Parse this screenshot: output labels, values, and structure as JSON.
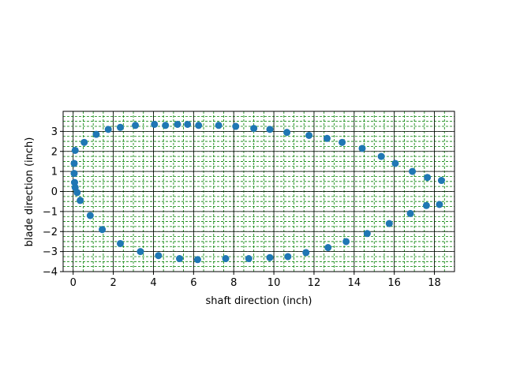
{
  "chart_data": {
    "type": "scatter",
    "title": "",
    "xlabel": "shaft direction (inch)",
    "ylabel": "blade direction (inch)",
    "xlim": [
      -0.5,
      19
    ],
    "ylim": [
      -4,
      4
    ],
    "xticks": [
      0,
      2,
      4,
      6,
      8,
      10,
      12,
      14,
      16,
      18
    ],
    "yticks": [
      -4,
      -3,
      -2,
      -1,
      0,
      1,
      2,
      3
    ],
    "x_minor_step": 0.5,
    "y_minor_step": 0.25,
    "grid": {
      "major": true,
      "major_color": "#000000",
      "minor": true,
      "minor_color": "#008000",
      "minor_style": "dashed"
    },
    "marker_color": "#1f77b4",
    "series": [
      {
        "points": [
          [
            0.05,
            1.4
          ],
          [
            0.1,
            2.05
          ],
          [
            0.55,
            2.45
          ],
          [
            1.15,
            2.85
          ],
          [
            1.75,
            3.1
          ],
          [
            2.35,
            3.2
          ],
          [
            3.1,
            3.3
          ],
          [
            4.05,
            3.35
          ],
          [
            4.6,
            3.3
          ],
          [
            5.2,
            3.35
          ],
          [
            5.7,
            3.35
          ],
          [
            6.25,
            3.3
          ],
          [
            7.25,
            3.3
          ],
          [
            8.1,
            3.25
          ],
          [
            9.0,
            3.15
          ],
          [
            9.8,
            3.1
          ],
          [
            10.65,
            2.95
          ],
          [
            11.75,
            2.8
          ],
          [
            12.65,
            2.65
          ],
          [
            13.4,
            2.45
          ],
          [
            14.4,
            2.15
          ],
          [
            15.35,
            1.75
          ],
          [
            16.05,
            1.4
          ],
          [
            16.9,
            1.0
          ],
          [
            17.65,
            0.7
          ],
          [
            18.35,
            0.55
          ],
          [
            0.05,
            0.9
          ],
          [
            0.07,
            0.45
          ],
          [
            0.1,
            0.2
          ],
          [
            0.2,
            -0.05
          ],
          [
            0.35,
            -0.45
          ],
          [
            0.85,
            -1.2
          ],
          [
            1.45,
            -1.9
          ],
          [
            2.35,
            -2.6
          ],
          [
            3.35,
            -3.0
          ],
          [
            4.25,
            -3.2
          ],
          [
            5.3,
            -3.35
          ],
          [
            6.2,
            -3.4
          ],
          [
            7.6,
            -3.35
          ],
          [
            8.75,
            -3.35
          ],
          [
            9.8,
            -3.3
          ],
          [
            10.7,
            -3.25
          ],
          [
            11.6,
            -3.05
          ],
          [
            12.7,
            -2.8
          ],
          [
            13.6,
            -2.5
          ],
          [
            14.65,
            -2.1
          ],
          [
            15.75,
            -1.6
          ],
          [
            16.8,
            -1.1
          ],
          [
            17.6,
            -0.7
          ],
          [
            18.25,
            -0.65
          ]
        ]
      }
    ]
  }
}
